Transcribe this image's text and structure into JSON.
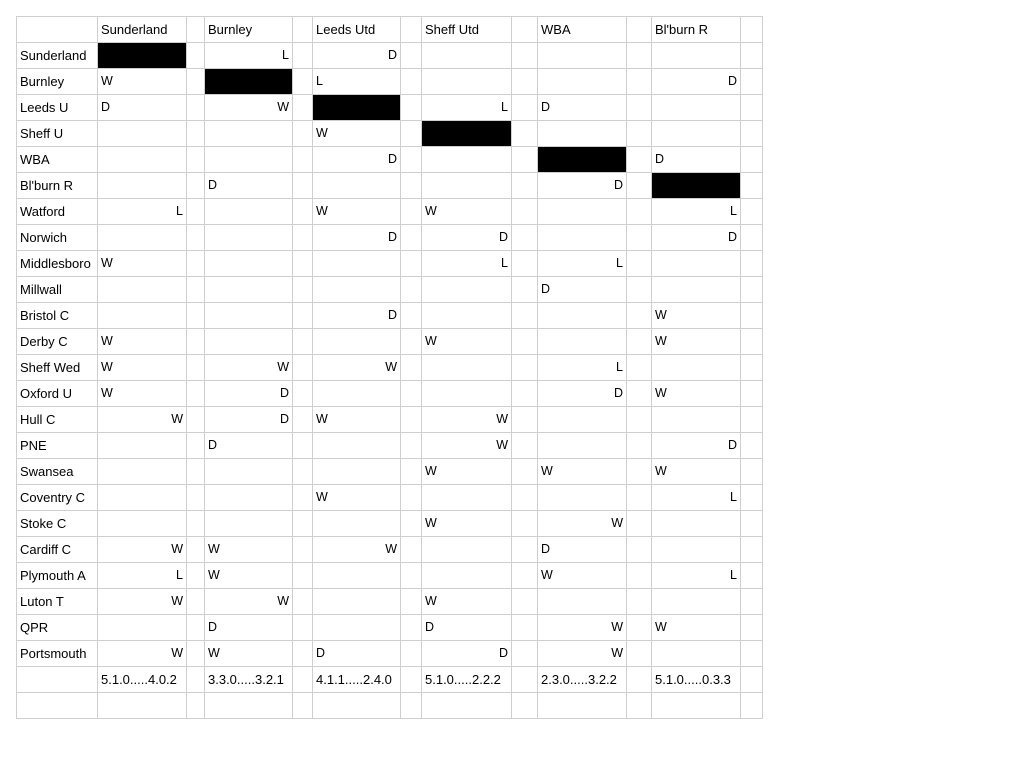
{
  "header": {
    "columns": [
      "Sunderland",
      "Burnley",
      "Leeds Utd",
      "Sheff Utd",
      "WBA",
      "Bl'burn R"
    ]
  },
  "rows": [
    {
      "team": "Sunderland",
      "cells": [
        [
          "B",
          ""
        ],
        [
          "",
          ""
        ],
        [
          "",
          "L"
        ],
        [
          "",
          ""
        ],
        [
          "",
          "D"
        ],
        [
          "",
          ""
        ],
        [
          "",
          ""
        ],
        [
          "",
          ""
        ],
        [
          "",
          ""
        ],
        [
          "",
          ""
        ],
        [
          "",
          ""
        ],
        [
          "",
          ""
        ]
      ]
    },
    {
      "team": "Burnley",
      "cells": [
        [
          "W",
          ""
        ],
        [
          "",
          ""
        ],
        [
          "B",
          ""
        ],
        [
          "",
          ""
        ],
        [
          "L",
          ""
        ],
        [
          "",
          ""
        ],
        [
          "",
          ""
        ],
        [
          "",
          ""
        ],
        [
          "",
          ""
        ],
        [
          "",
          ""
        ],
        [
          "",
          "D"
        ],
        [
          "",
          ""
        ]
      ]
    },
    {
      "team": "Leeds U",
      "cells": [
        [
          "D",
          ""
        ],
        [
          "",
          ""
        ],
        [
          "",
          "W"
        ],
        [
          "",
          ""
        ],
        [
          "B",
          ""
        ],
        [
          "",
          ""
        ],
        [
          "",
          "L"
        ],
        [
          "",
          ""
        ],
        [
          "D",
          ""
        ],
        [
          "",
          ""
        ],
        [
          "",
          ""
        ],
        [
          "",
          ""
        ]
      ]
    },
    {
      "team": "Sheff U",
      "cells": [
        [
          "",
          ""
        ],
        [
          "",
          ""
        ],
        [
          "",
          ""
        ],
        [
          "",
          ""
        ],
        [
          "W",
          ""
        ],
        [
          "",
          ""
        ],
        [
          "B",
          ""
        ],
        [
          "",
          ""
        ],
        [
          "",
          ""
        ],
        [
          "",
          ""
        ],
        [
          "",
          ""
        ],
        [
          "",
          ""
        ]
      ]
    },
    {
      "team": "WBA",
      "cells": [
        [
          "",
          ""
        ],
        [
          "",
          ""
        ],
        [
          "",
          ""
        ],
        [
          "",
          ""
        ],
        [
          "",
          "D"
        ],
        [
          "",
          ""
        ],
        [
          "",
          ""
        ],
        [
          "",
          ""
        ],
        [
          "B",
          ""
        ],
        [
          "",
          ""
        ],
        [
          "D",
          ""
        ],
        [
          "",
          ""
        ]
      ]
    },
    {
      "team": "Bl'burn R",
      "cells": [
        [
          "",
          ""
        ],
        [
          "",
          ""
        ],
        [
          "D",
          ""
        ],
        [
          "",
          ""
        ],
        [
          "",
          ""
        ],
        [
          "",
          ""
        ],
        [
          "",
          ""
        ],
        [
          "",
          ""
        ],
        [
          "",
          "D"
        ],
        [
          "",
          ""
        ],
        [
          "B",
          ""
        ],
        [
          "",
          ""
        ]
      ]
    },
    {
      "team": "Watford",
      "cells": [
        [
          "",
          "L"
        ],
        [
          "",
          ""
        ],
        [
          "",
          ""
        ],
        [
          "",
          ""
        ],
        [
          "W",
          ""
        ],
        [
          "",
          ""
        ],
        [
          "W",
          ""
        ],
        [
          "",
          ""
        ],
        [
          "",
          ""
        ],
        [
          "",
          ""
        ],
        [
          "",
          "L"
        ],
        [
          "",
          ""
        ]
      ]
    },
    {
      "team": "Norwich",
      "cells": [
        [
          "",
          ""
        ],
        [
          "",
          ""
        ],
        [
          "",
          ""
        ],
        [
          "",
          ""
        ],
        [
          "",
          "D"
        ],
        [
          "",
          ""
        ],
        [
          "",
          "D"
        ],
        [
          "",
          ""
        ],
        [
          "",
          ""
        ],
        [
          "",
          ""
        ],
        [
          "",
          "D"
        ],
        [
          "",
          ""
        ]
      ]
    },
    {
      "team": "Middlesboro",
      "cells": [
        [
          "W",
          ""
        ],
        [
          "",
          ""
        ],
        [
          "",
          ""
        ],
        [
          "",
          ""
        ],
        [
          "",
          ""
        ],
        [
          "",
          ""
        ],
        [
          "",
          "L"
        ],
        [
          "",
          ""
        ],
        [
          "",
          "L"
        ],
        [
          "",
          ""
        ],
        [
          "",
          ""
        ],
        [
          "",
          ""
        ]
      ]
    },
    {
      "team": "Millwall",
      "cells": [
        [
          "",
          ""
        ],
        [
          "",
          ""
        ],
        [
          "",
          ""
        ],
        [
          "",
          ""
        ],
        [
          "",
          ""
        ],
        [
          "",
          ""
        ],
        [
          "",
          ""
        ],
        [
          "",
          ""
        ],
        [
          "D",
          ""
        ],
        [
          "",
          ""
        ],
        [
          "",
          ""
        ],
        [
          "",
          ""
        ]
      ]
    },
    {
      "team": "Bristol C",
      "cells": [
        [
          "",
          ""
        ],
        [
          "",
          ""
        ],
        [
          "",
          ""
        ],
        [
          "",
          ""
        ],
        [
          "",
          "D"
        ],
        [
          "",
          ""
        ],
        [
          "",
          ""
        ],
        [
          "",
          ""
        ],
        [
          "",
          ""
        ],
        [
          "",
          ""
        ],
        [
          "W",
          ""
        ],
        [
          "",
          ""
        ]
      ]
    },
    {
      "team": "Derby C",
      "cells": [
        [
          "W",
          ""
        ],
        [
          "",
          ""
        ],
        [
          "",
          ""
        ],
        [
          "",
          ""
        ],
        [
          "",
          ""
        ],
        [
          "",
          ""
        ],
        [
          "W",
          ""
        ],
        [
          "",
          ""
        ],
        [
          "",
          ""
        ],
        [
          "",
          ""
        ],
        [
          "W",
          ""
        ],
        [
          "",
          ""
        ]
      ]
    },
    {
      "team": "Sheff Wed",
      "cells": [
        [
          "W",
          ""
        ],
        [
          "",
          ""
        ],
        [
          "",
          "W"
        ],
        [
          "",
          ""
        ],
        [
          "",
          "W"
        ],
        [
          "",
          ""
        ],
        [
          "",
          ""
        ],
        [
          "",
          ""
        ],
        [
          "",
          "L"
        ],
        [
          "",
          ""
        ],
        [
          "",
          ""
        ],
        [
          "",
          ""
        ]
      ]
    },
    {
      "team": "Oxford U",
      "cells": [
        [
          "W",
          ""
        ],
        [
          "",
          ""
        ],
        [
          "",
          "D"
        ],
        [
          "",
          ""
        ],
        [
          "",
          ""
        ],
        [
          "",
          ""
        ],
        [
          "",
          ""
        ],
        [
          "",
          ""
        ],
        [
          "",
          "D"
        ],
        [
          "",
          ""
        ],
        [
          "W",
          ""
        ],
        [
          "",
          ""
        ]
      ]
    },
    {
      "team": "Hull C",
      "cells": [
        [
          "",
          "W"
        ],
        [
          "",
          ""
        ],
        [
          "",
          "D"
        ],
        [
          "",
          ""
        ],
        [
          "W",
          ""
        ],
        [
          "",
          ""
        ],
        [
          "",
          "W"
        ],
        [
          "",
          ""
        ],
        [
          "",
          ""
        ],
        [
          "",
          ""
        ],
        [
          "",
          ""
        ],
        [
          "",
          ""
        ]
      ]
    },
    {
      "team": "PNE",
      "cells": [
        [
          "",
          ""
        ],
        [
          "",
          ""
        ],
        [
          "D",
          ""
        ],
        [
          "",
          ""
        ],
        [
          "",
          ""
        ],
        [
          "",
          ""
        ],
        [
          "",
          "W"
        ],
        [
          "",
          ""
        ],
        [
          "",
          ""
        ],
        [
          "",
          ""
        ],
        [
          "",
          "D"
        ],
        [
          "",
          ""
        ]
      ]
    },
    {
      "team": "Swansea",
      "cells": [
        [
          "",
          ""
        ],
        [
          "",
          ""
        ],
        [
          "",
          ""
        ],
        [
          "",
          ""
        ],
        [
          "",
          ""
        ],
        [
          "",
          ""
        ],
        [
          "W",
          ""
        ],
        [
          "",
          ""
        ],
        [
          "W",
          ""
        ],
        [
          "",
          ""
        ],
        [
          "W",
          ""
        ],
        [
          "",
          ""
        ]
      ]
    },
    {
      "team": "Coventry C",
      "cells": [
        [
          "",
          ""
        ],
        [
          "",
          ""
        ],
        [
          "",
          ""
        ],
        [
          "",
          ""
        ],
        [
          "W",
          ""
        ],
        [
          "",
          ""
        ],
        [
          "",
          ""
        ],
        [
          "",
          ""
        ],
        [
          "",
          ""
        ],
        [
          "",
          ""
        ],
        [
          "",
          "L"
        ],
        [
          "",
          ""
        ]
      ]
    },
    {
      "team": "Stoke C",
      "cells": [
        [
          "",
          ""
        ],
        [
          "",
          ""
        ],
        [
          "",
          ""
        ],
        [
          "",
          ""
        ],
        [
          "",
          ""
        ],
        [
          "",
          ""
        ],
        [
          "W",
          ""
        ],
        [
          "",
          ""
        ],
        [
          "",
          "W"
        ],
        [
          "",
          ""
        ],
        [
          "",
          ""
        ],
        [
          "",
          ""
        ]
      ]
    },
    {
      "team": "Cardiff C",
      "cells": [
        [
          "",
          "W"
        ],
        [
          "",
          ""
        ],
        [
          "W",
          ""
        ],
        [
          "",
          ""
        ],
        [
          "",
          "W"
        ],
        [
          "",
          ""
        ],
        [
          "",
          ""
        ],
        [
          "",
          ""
        ],
        [
          "D",
          ""
        ],
        [
          "",
          ""
        ],
        [
          "",
          ""
        ],
        [
          "",
          ""
        ]
      ]
    },
    {
      "team": "Plymouth A",
      "cells": [
        [
          "",
          "L"
        ],
        [
          "",
          ""
        ],
        [
          "W",
          ""
        ],
        [
          "",
          ""
        ],
        [
          "",
          ""
        ],
        [
          "",
          ""
        ],
        [
          "",
          ""
        ],
        [
          "",
          ""
        ],
        [
          "W",
          ""
        ],
        [
          "",
          ""
        ],
        [
          "",
          "L"
        ],
        [
          "",
          ""
        ]
      ]
    },
    {
      "team": "Luton T",
      "cells": [
        [
          "",
          "W"
        ],
        [
          "",
          ""
        ],
        [
          "",
          "W"
        ],
        [
          "",
          ""
        ],
        [
          "",
          ""
        ],
        [
          "",
          ""
        ],
        [
          "W",
          ""
        ],
        [
          "",
          ""
        ],
        [
          "",
          ""
        ],
        [
          "",
          ""
        ],
        [
          "",
          ""
        ],
        [
          "",
          ""
        ]
      ]
    },
    {
      "team": "QPR",
      "cells": [
        [
          "",
          ""
        ],
        [
          "",
          ""
        ],
        [
          "D",
          ""
        ],
        [
          "",
          ""
        ],
        [
          "",
          ""
        ],
        [
          "",
          ""
        ],
        [
          "D",
          ""
        ],
        [
          "",
          ""
        ],
        [
          "",
          "W"
        ],
        [
          "",
          ""
        ],
        [
          "W",
          ""
        ],
        [
          "",
          ""
        ]
      ]
    },
    {
      "team": "Portsmouth",
      "cells": [
        [
          "",
          "W"
        ],
        [
          "",
          ""
        ],
        [
          "W",
          ""
        ],
        [
          "",
          ""
        ],
        [
          "D",
          ""
        ],
        [
          "",
          ""
        ],
        [
          "",
          "D"
        ],
        [
          "",
          ""
        ],
        [
          "",
          "W"
        ],
        [
          "",
          ""
        ],
        [
          "",
          ""
        ],
        [
          "",
          ""
        ]
      ]
    }
  ],
  "totals": [
    "5.1.0.....4.0.2",
    "3.3.0.....3.2.1",
    "4.1.1.....2.4.0",
    "5.1.0.....2.2.2",
    "2.3.0.....3.2.2",
    "5.1.0.....0.3.3"
  ],
  "colors": {
    "win": "#22dd22",
    "draw": "#e69a00",
    "loss": "#ee1111",
    "blocked": "#000000",
    "grid": "#cfcfcf"
  }
}
